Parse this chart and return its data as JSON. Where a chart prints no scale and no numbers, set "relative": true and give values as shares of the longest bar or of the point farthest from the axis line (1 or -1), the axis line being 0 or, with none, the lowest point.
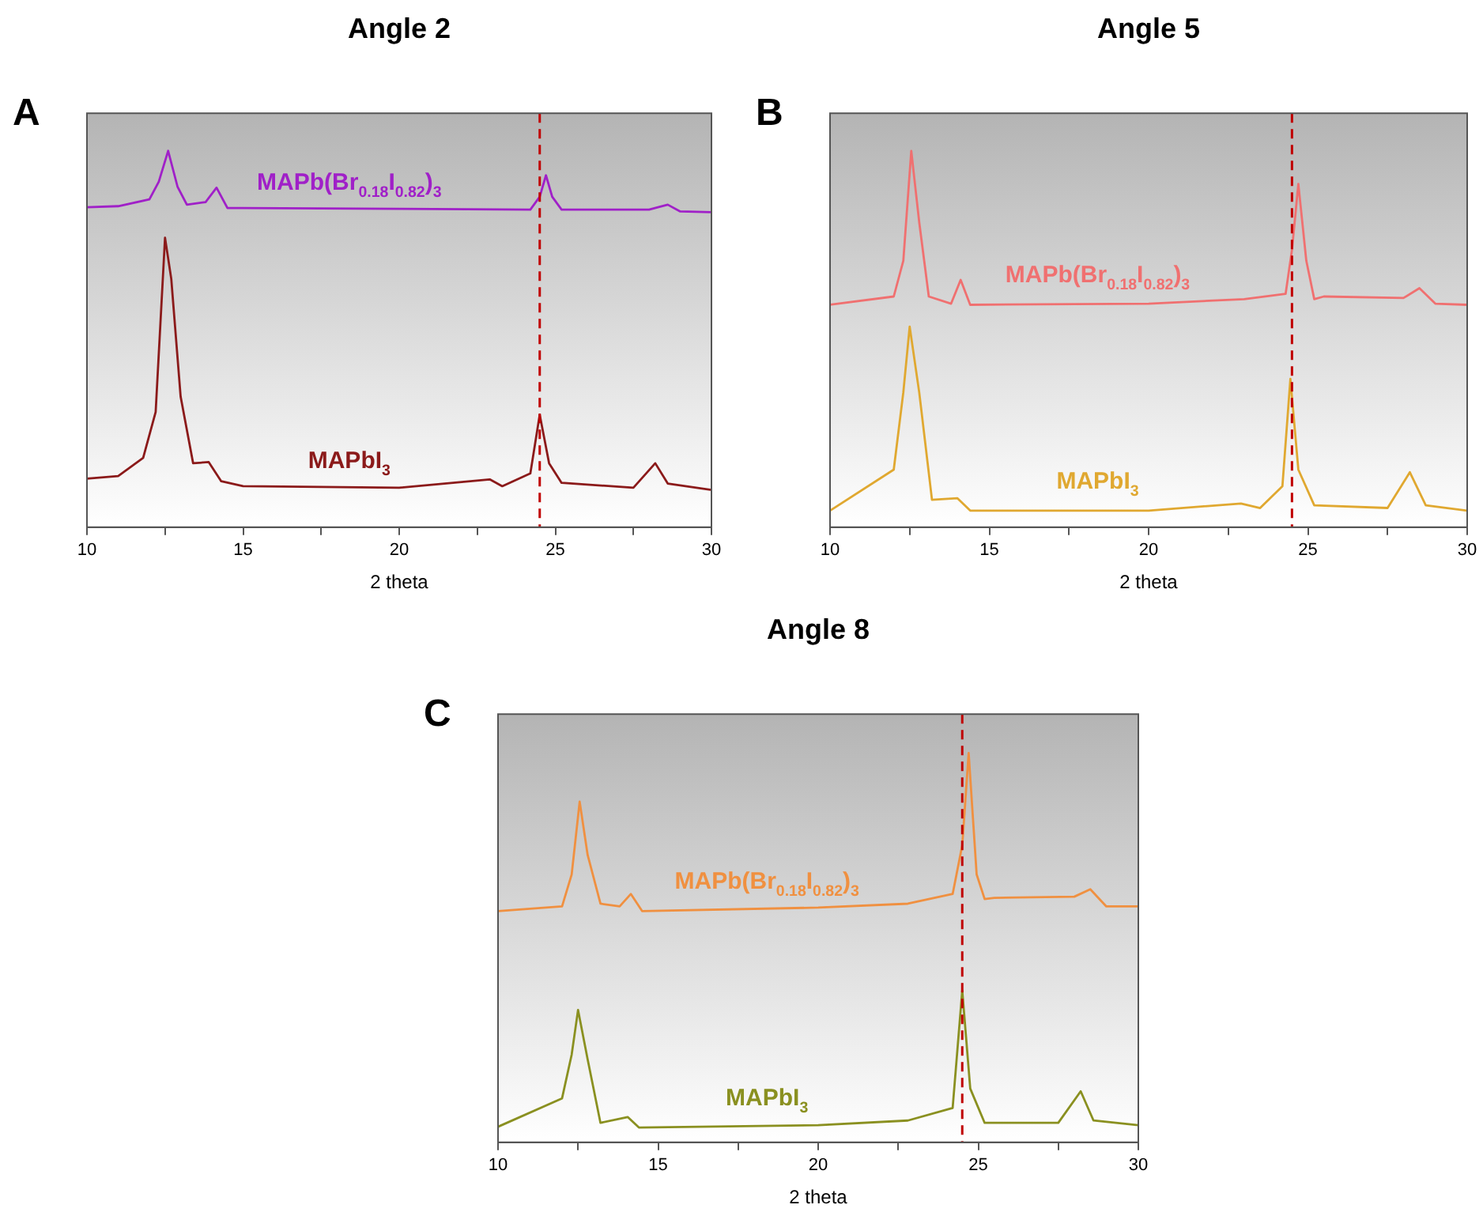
{
  "chart_data": [
    {
      "type": "line",
      "title": "Angle 2",
      "xlabel": "2 theta",
      "relative": true,
      "annotations": [
        "A"
      ],
      "xlim": [
        10,
        30
      ],
      "xticks": [
        10,
        {
          "value": 12.5,
          "label": null
        },
        15,
        {
          "value": 17.5,
          "label": null
        },
        20,
        {
          "value": 22.5,
          "label": null
        },
        25,
        {
          "value": 27.5,
          "label": null
        },
        30
      ],
      "grid": false,
      "legend": false,
      "marker": "none",
      "line_style": "solid",
      "ref_lines": [
        {
          "axis": "x",
          "value": 24.5,
          "color": "#c00000",
          "line_style": "dashed"
        }
      ],
      "series": [
        {
          "name": "MAPb(Br$_{0.18}$I$_{0.82}$)$_{3}$",
          "color": "#a020c8",
          "x": [
            10,
            11,
            12,
            12.3,
            12.6,
            12.9,
            13.2,
            13.8,
            14.15,
            14.5,
            15,
            20,
            24.2,
            24.5,
            24.7,
            24.9,
            25.2,
            28,
            28.6,
            29,
            30
          ],
          "values": [
            0.85,
            0.853,
            0.871,
            0.918,
            1,
            0.905,
            0.857,
            0.864,
            0.902,
            0.848,
            0.848,
            0.846,
            0.844,
            0.878,
            0.935,
            0.878,
            0.844,
            0.844,
            0.857,
            0.839,
            0.837
          ]
        },
        {
          "name": "MAPbI$_{3}$",
          "color": "#8b1a1a",
          "x": [
            10,
            11,
            11.8,
            12.2,
            12.5,
            12.7,
            13,
            13.4,
            13.9,
            14.3,
            15,
            20,
            22.9,
            23.3,
            24.2,
            24.5,
            24.8,
            25.2,
            27.5,
            28.2,
            28.6,
            30
          ],
          "values": [
            0.129,
            0.136,
            0.184,
            0.306,
            0.769,
            0.66,
            0.347,
            0.17,
            0.173,
            0.122,
            0.109,
            0.105,
            0.127,
            0.109,
            0.143,
            0.299,
            0.17,
            0.118,
            0.105,
            0.17,
            0.116,
            0.099
          ]
        }
      ]
    },
    {
      "type": "line",
      "title": "Angle 5",
      "xlabel": "2 theta",
      "relative": true,
      "annotations": [
        "B"
      ],
      "xlim": [
        10,
        30
      ],
      "xticks": [
        10,
        {
          "value": 12.5,
          "label": null
        },
        15,
        {
          "value": 17.5,
          "label": null
        },
        20,
        {
          "value": 22.5,
          "label": null
        },
        25,
        {
          "value": 27.5,
          "label": null
        },
        30
      ],
      "grid": false,
      "legend": false,
      "marker": "none",
      "line_style": "solid",
      "ref_lines": [
        {
          "axis": "x",
          "value": 24.5,
          "color": "#c00000",
          "line_style": "dashed"
        }
      ],
      "series": [
        {
          "name": "MAPb(Br$_{0.18}$I$_{0.82}$)$_{3}$",
          "color": "#f07070",
          "x": [
            10,
            12,
            12.3,
            12.55,
            12.8,
            13.1,
            13.8,
            14.1,
            14.4,
            20,
            23,
            24.3,
            24.5,
            24.7,
            24.95,
            25.2,
            25.5,
            28,
            28.5,
            29,
            30
          ],
          "values": [
            0.591,
            0.613,
            0.708,
            1,
            0.81,
            0.613,
            0.594,
            0.657,
            0.591,
            0.594,
            0.606,
            0.62,
            0.737,
            0.912,
            0.708,
            0.606,
            0.613,
            0.609,
            0.635,
            0.594,
            0.591
          ]
        },
        {
          "name": "MAPbI$_{3}$",
          "color": "#e0a830",
          "x": [
            10,
            12,
            12.3,
            12.5,
            12.8,
            13.2,
            14,
            14.4,
            20,
            22.9,
            23.5,
            24.2,
            24.45,
            24.7,
            25.2,
            27.5,
            28.2,
            28.7,
            30
          ],
          "values": [
            0.044,
            0.153,
            0.358,
            0.533,
            0.358,
            0.073,
            0.077,
            0.044,
            0.044,
            0.063,
            0.051,
            0.109,
            0.394,
            0.153,
            0.058,
            0.051,
            0.146,
            0.058,
            0.044
          ]
        }
      ]
    },
    {
      "type": "line",
      "title": "Angle 8",
      "xlabel": "2 theta",
      "relative": true,
      "annotations": [
        "C"
      ],
      "xlim": [
        10,
        30
      ],
      "xticks": [
        10,
        {
          "value": 12.5,
          "label": null
        },
        15,
        {
          "value": 17.5,
          "label": null
        },
        20,
        {
          "value": 22.5,
          "label": null
        },
        25,
        {
          "value": 27.5,
          "label": null
        },
        30
      ],
      "grid": false,
      "legend": false,
      "marker": "none",
      "line_style": "solid",
      "ref_lines": [
        {
          "axis": "x",
          "value": 24.5,
          "color": "#c00000",
          "line_style": "dashed"
        }
      ],
      "series": [
        {
          "name": "MAPb(Br$_{0.18}$I$_{0.82}$)$_{3}$",
          "color": "#f09040",
          "x": [
            10,
            12,
            12.3,
            12.55,
            12.8,
            13.2,
            13.8,
            14.15,
            14.5,
            20,
            22.8,
            24.2,
            24.5,
            24.7,
            24.95,
            25.2,
            25.5,
            28,
            28.5,
            29,
            30
          ],
          "values": [
            0.594,
            0.606,
            0.688,
            0.875,
            0.738,
            0.613,
            0.606,
            0.638,
            0.594,
            0.603,
            0.613,
            0.638,
            0.763,
            1,
            0.688,
            0.625,
            0.628,
            0.631,
            0.65,
            0.606,
            0.606
          ]
        },
        {
          "name": "MAPbI$_{3}$",
          "color": "#8a9020",
          "x": [
            10,
            12,
            12.3,
            12.5,
            12.8,
            13.2,
            14.05,
            14.4,
            20,
            22.8,
            24.2,
            24.5,
            24.75,
            25.2,
            27.5,
            28.2,
            28.6,
            30
          ],
          "values": [
            0.04,
            0.113,
            0.225,
            0.34,
            0.213,
            0.05,
            0.065,
            0.038,
            0.044,
            0.056,
            0.088,
            0.39,
            0.138,
            0.05,
            0.05,
            0.131,
            0.056,
            0.044
          ]
        }
      ]
    }
  ]
}
